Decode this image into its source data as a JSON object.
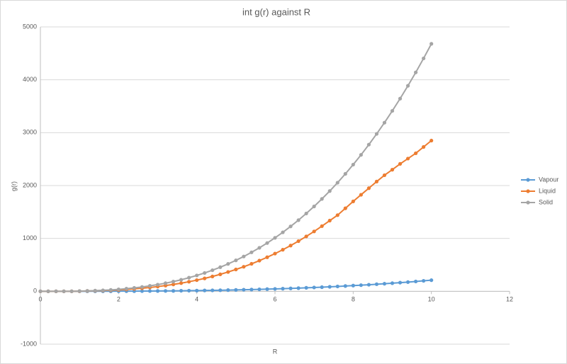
{
  "chart_data": {
    "type": "scatter-line",
    "title": "int g(r) against R",
    "x_label": "R",
    "y_label": "g(r)",
    "x": [
      0,
      0.2,
      0.4,
      0.6,
      0.8,
      1,
      1.2,
      1.4,
      1.6,
      1.8,
      2,
      2.2,
      2.4,
      2.6,
      2.8,
      3,
      3.2,
      3.4,
      3.6,
      3.8,
      4,
      4.2,
      4.4,
      4.6,
      4.8,
      5,
      5.2,
      5.4,
      5.6,
      5.8,
      6,
      6.2,
      6.4,
      6.6,
      6.8,
      7,
      7.2,
      7.4,
      7.6,
      7.8,
      8,
      8.2,
      8.4,
      8.6,
      8.8,
      9,
      9.2,
      9.4,
      9.6,
      9.8,
      10
    ],
    "series": [
      {
        "name": "Vapour",
        "color": "#5b9bd5",
        "values": [
          0,
          0,
          0,
          0,
          0,
          0,
          0,
          1,
          1,
          1,
          2,
          2,
          3,
          4,
          5,
          6,
          7,
          8,
          10,
          12,
          13,
          16,
          18,
          20,
          23,
          26,
          30,
          33,
          37,
          41,
          45,
          50,
          55,
          60,
          66,
          72,
          78,
          85,
          92,
          100,
          108,
          116,
          124,
          134,
          143,
          153,
          164,
          174,
          186,
          198,
          210
        ]
      },
      {
        "name": "Liquid",
        "color": "#ed7d31",
        "values": [
          0,
          0,
          0,
          0,
          0,
          3,
          6,
          9,
          14,
          19,
          26,
          35,
          46,
          58,
          72,
          89,
          108,
          130,
          154,
          181,
          211,
          244,
          281,
          321,
          365,
          413,
          464,
          520,
          580,
          644,
          713,
          786,
          865,
          949,
          1038,
          1132,
          1232,
          1337,
          1440,
          1570,
          1700,
          1825,
          1950,
          2075,
          2195,
          2300,
          2410,
          2510,
          2610,
          2730,
          2850
        ]
      },
      {
        "name": "Solid",
        "color": "#a5a5a5",
        "values": [
          0,
          0,
          0,
          0,
          0,
          5,
          8,
          13,
          19,
          27,
          37,
          50,
          65,
          82,
          103,
          126,
          153,
          184,
          218,
          257,
          300,
          347,
          399,
          456,
          518,
          585,
          658,
          737,
          822,
          913,
          1011,
          1115,
          1227,
          1345,
          1472,
          1605,
          1747,
          1896,
          2054,
          2221,
          2396,
          2580,
          2774,
          2977,
          3189,
          3412,
          3644,
          3887,
          4140,
          4405,
          4680
        ]
      }
    ],
    "xlim": [
      0,
      12
    ],
    "xticks": [
      0,
      2,
      4,
      6,
      8,
      10,
      12
    ],
    "ylim": [
      -1000,
      5000
    ],
    "yticks": [
      -1000,
      0,
      1000,
      2000,
      3000,
      4000,
      5000
    ],
    "grid": true,
    "legend": "right"
  }
}
